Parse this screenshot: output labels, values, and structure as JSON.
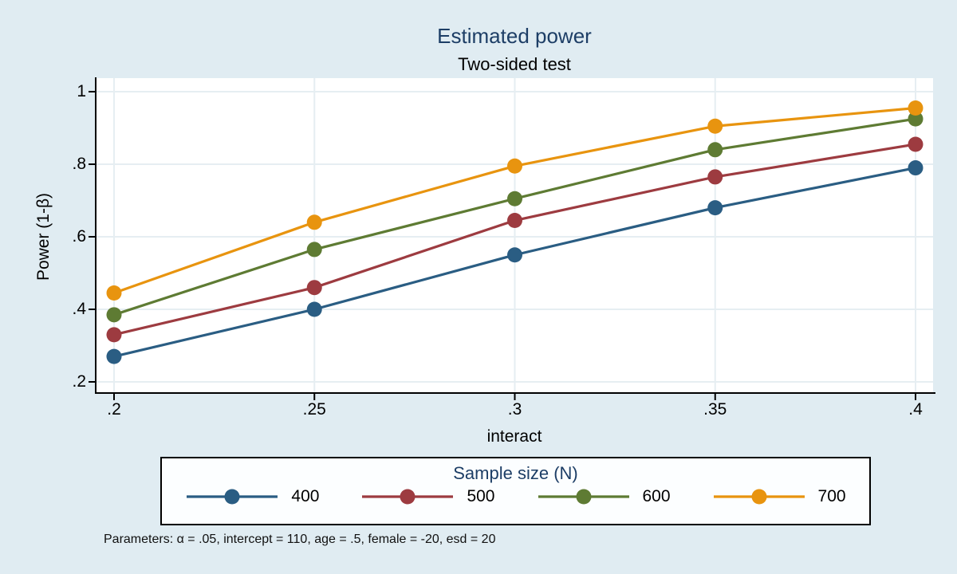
{
  "title": "Estimated power",
  "subtitle": "Two-sided test",
  "note": "Parameters: α = .05, intercept = 110, age = .5, female = -20, esd = 20",
  "colors": {
    "title_text": "#1d3e66",
    "background": "#e0ecf2",
    "plot_background": "#ffffff",
    "grid": "#e6eef2",
    "axis": "#000000",
    "legend_background": "#fcfeff"
  },
  "chart_data": {
    "type": "line",
    "title": "Estimated power",
    "subtitle": "Two-sided test",
    "xlabel": "interact",
    "ylabel": "Power (1-β)",
    "x": [
      0.2,
      0.25,
      0.3,
      0.35,
      0.4
    ],
    "x_tick_labels": [
      ".2",
      ".25",
      ".3",
      ".35",
      ".4"
    ],
    "y_ticks": [
      1,
      0.8,
      0.6,
      0.4,
      0.2
    ],
    "y_tick_labels": [
      "1",
      ".8",
      ".6",
      ".4",
      ".2"
    ],
    "xlim": [
      0.2,
      0.4
    ],
    "ylim": [
      0.17,
      1.03
    ],
    "grid": true,
    "legend": {
      "title": "Sample size (N)",
      "position": "bottom"
    },
    "series": [
      {
        "name": "400",
        "color": "#2a5d83",
        "values": [
          0.27,
          0.4,
          0.55,
          0.68,
          0.79
        ]
      },
      {
        "name": "500",
        "color": "#9d3b40",
        "values": [
          0.33,
          0.46,
          0.645,
          0.765,
          0.855
        ]
      },
      {
        "name": "600",
        "color": "#5e7b33",
        "values": [
          0.385,
          0.565,
          0.705,
          0.84,
          0.925
        ]
      },
      {
        "name": "700",
        "color": "#e8940f",
        "values": [
          0.445,
          0.64,
          0.795,
          0.905,
          0.955
        ]
      }
    ]
  }
}
